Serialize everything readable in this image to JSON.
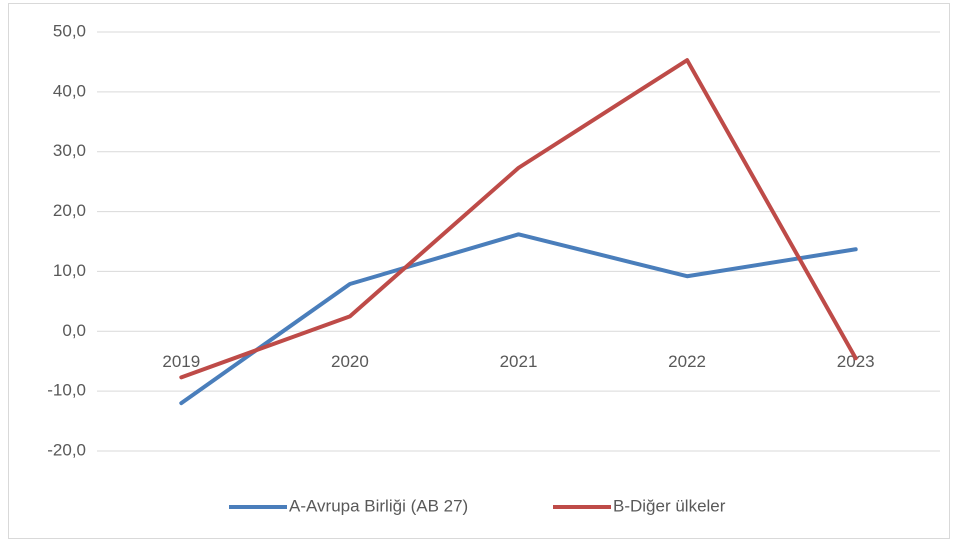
{
  "chart_data": {
    "type": "line",
    "categories": [
      "2019",
      "2020",
      "2021",
      "2022",
      "2023"
    ],
    "series": [
      {
        "name": "A-Avrupa Birliği (AB 27)",
        "color": "#4a7ebb",
        "values": [
          -12.0,
          7.9,
          16.2,
          9.2,
          13.7
        ]
      },
      {
        "name": "B-Diğer ülkeler",
        "color": "#be4b48",
        "values": [
          -7.7,
          2.5,
          27.3,
          45.3,
          -4.5
        ]
      }
    ],
    "ylim": [
      -20,
      50
    ],
    "yticks": [
      {
        "value": -20,
        "label": "-20,0"
      },
      {
        "value": -10,
        "label": "-10,0"
      },
      {
        "value": 0,
        "label": "0,0"
      },
      {
        "value": 10,
        "label": "10,0"
      },
      {
        "value": 20,
        "label": "20,0"
      },
      {
        "value": 30,
        "label": "30,0"
      },
      {
        "value": 40,
        "label": "40,0"
      },
      {
        "value": 50,
        "label": "50,0"
      }
    ],
    "grid": true,
    "legend": "bottom"
  }
}
